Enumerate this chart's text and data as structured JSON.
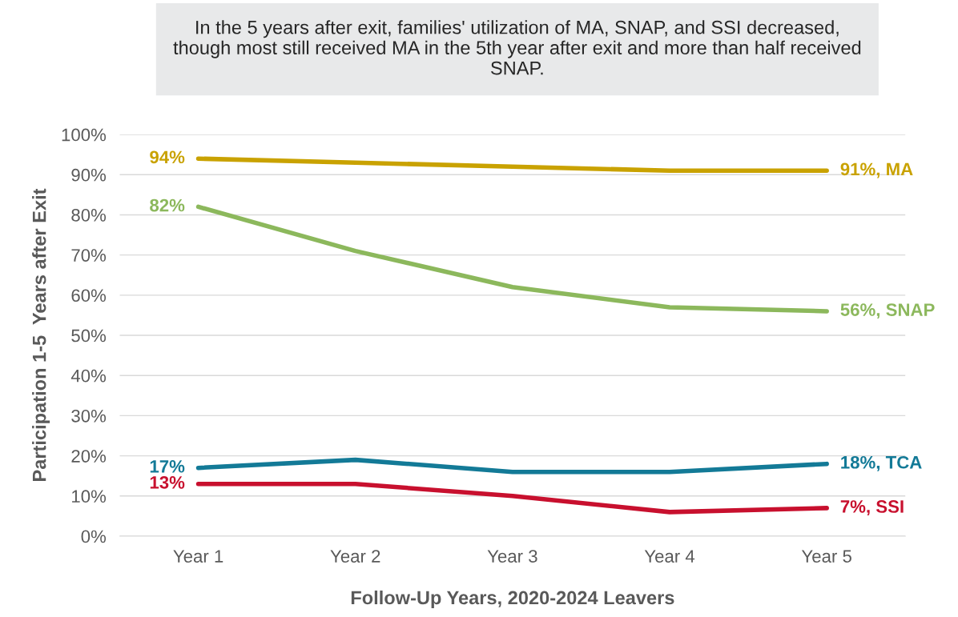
{
  "chart_data": {
    "type": "line",
    "title": "In the 5 years after exit, families' utilization of MA, SNAP, and SSI decreased, though most still received MA in the 5th year after exit and more than half received SNAP.",
    "xlabel": "Follow-Up Years, 2020-2024 Leavers",
    "ylabel": "Participation 1-5  Years after Exit",
    "categories": [
      "Year 1",
      "Year 2",
      "Year 3",
      "Year 4",
      "Year 5"
    ],
    "series": [
      {
        "color": "#c9a200",
        "values": [
          94,
          93,
          92,
          91,
          91
        ],
        "value_labels": [
          "94%",
          null,
          null,
          null,
          "91%, MA"
        ]
      },
      {
        "color": "#8cb85c",
        "values": [
          82,
          71,
          62,
          57,
          56
        ],
        "value_labels": [
          "82%",
          null,
          null,
          null,
          "56%, SNAP"
        ]
      },
      {
        "color": "#137a97",
        "values": [
          17,
          19,
          16,
          16,
          18
        ],
        "value_labels": [
          "17%",
          null,
          null,
          null,
          "18%, TCA"
        ]
      },
      {
        "color": "#c8102e",
        "values": [
          13,
          13,
          10,
          6,
          7
        ],
        "value_labels": [
          "13%",
          null,
          null,
          null,
          "7%, SSI"
        ]
      }
    ],
    "ylim": [
      0,
      100
    ],
    "yticks": [
      {
        "value": 0,
        "label": "0%"
      },
      {
        "value": 10,
        "label": "10%"
      },
      {
        "value": 20,
        "label": "20%"
      },
      {
        "value": 30,
        "label": "30%"
      },
      {
        "value": 40,
        "label": "40%"
      },
      {
        "value": 50,
        "label": "50%"
      },
      {
        "value": 60,
        "label": "60%"
      },
      {
        "value": 70,
        "label": "70%"
      },
      {
        "value": 80,
        "label": "80%"
      },
      {
        "value": 90,
        "label": "90%"
      },
      {
        "value": 100,
        "label": "100%"
      }
    ],
    "grid": "y",
    "marker": "none",
    "line_style": "solid"
  }
}
